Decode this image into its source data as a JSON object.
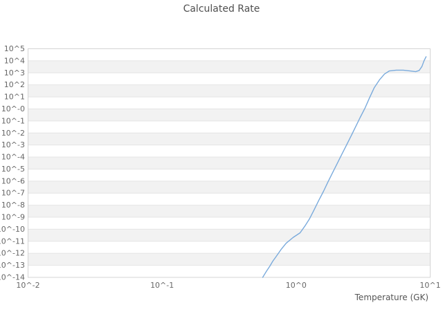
{
  "title": "Calculated Rate",
  "xlabel": "Temperature (GK)",
  "colors": {
    "series": "#79aadc",
    "band_fill": "#f2f2f2",
    "grid_line": "#e4e4e4",
    "plot_border": "#d4d4d4",
    "title_text": "#4f4f4f",
    "tick_text": "#666666",
    "axis_label_text": "#555555",
    "background": "#ffffff"
  },
  "chart_data": {
    "type": "line",
    "title": "Calculated Rate",
    "xlabel": "Temperature (GK)",
    "ylabel": "",
    "x_scale": "log",
    "y_scale": "log",
    "x_range_log10": [
      -2,
      1
    ],
    "y_range_log10": [
      -14,
      5
    ],
    "x_tick_log10": [
      -2,
      -1,
      0,
      1
    ],
    "x_tick_labels": [
      "10^-2",
      "10^-1",
      "10^0",
      "10^1"
    ],
    "y_tick_log10": [
      5,
      4,
      3,
      2,
      1,
      0,
      -1,
      -2,
      -3,
      -4,
      -5,
      -6,
      -7,
      -8,
      -9,
      -10,
      -11,
      -12,
      -13,
      -14
    ],
    "y_tick_labels": [
      "10^5",
      "10^4",
      "10^3",
      "10^2",
      "10^1",
      "10^-0",
      "10^-1",
      "10^-2",
      "10^-3",
      "10^-4",
      "10^-5",
      "10^-6",
      "10^-7",
      "10^-8",
      "10^-9",
      "10^-10",
      "10^-11",
      "10^-12",
      "10^-13",
      "10^-14"
    ],
    "grid": "horizontal-decade-bands",
    "legend": "none",
    "series": [
      {
        "name": "Calculated Rate",
        "color": "#79aadc",
        "T_GK": [
          0.563,
          0.6,
          0.638,
          0.67,
          0.705,
          0.77,
          0.843,
          0.95,
          1.07,
          1.16,
          1.256,
          1.36,
          1.472,
          1.6,
          1.726,
          1.87,
          2.023,
          2.19,
          2.371,
          2.57,
          2.779,
          3.0,
          3.258,
          3.52,
          3.819,
          4.2,
          4.56,
          4.96,
          5.58,
          6.29,
          7.08,
          7.79,
          8.27,
          8.68,
          8.99,
          9.32
        ],
        "log10_rate": [
          -14.0,
          -13.5,
          -13.05,
          -12.65,
          -12.31,
          -11.7,
          -11.16,
          -10.68,
          -10.3,
          -9.75,
          -9.15,
          -8.4,
          -7.62,
          -6.85,
          -6.08,
          -5.3,
          -4.55,
          -3.78,
          -3.02,
          -2.25,
          -1.48,
          -0.72,
          0.05,
          0.9,
          1.75,
          2.44,
          2.9,
          3.16,
          3.22,
          3.22,
          3.16,
          3.1,
          3.19,
          3.53,
          3.99,
          4.34
        ]
      }
    ]
  }
}
